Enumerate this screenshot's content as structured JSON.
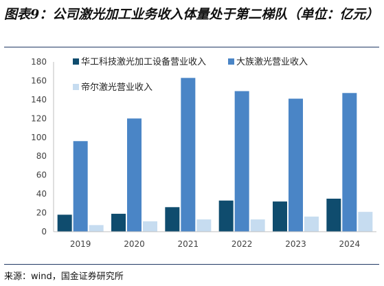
{
  "title": "图表9：公司激光加工业务收入体量处于第二梯队（单位：亿元）",
  "source": "来源：wind，国金证券研究所",
  "chart_data": {
    "type": "bar",
    "title": "图表9：公司激光加工业务收入体量处于第二梯队（单位：亿元）",
    "xlabel": "",
    "ylabel": "",
    "categories": [
      "2019",
      "2020",
      "2021",
      "2022",
      "2023",
      "2024"
    ],
    "ylim": [
      0,
      180
    ],
    "yticks": [
      0,
      20,
      40,
      60,
      80,
      100,
      120,
      140,
      160,
      180
    ],
    "grid": false,
    "legend_position": "top-left",
    "series": [
      {
        "name": "华工科技激光加工设备营业收入",
        "color": "#0f4c6e",
        "values": [
          18,
          19,
          26,
          33,
          32,
          35
        ]
      },
      {
        "name": "大族激光营业收入",
        "color": "#4a85c6",
        "values": [
          96,
          120,
          163,
          149,
          141,
          147
        ]
      },
      {
        "name": "帝尔激光营业收入",
        "color": "#c6dcf0",
        "values": [
          7,
          11,
          13,
          13,
          16,
          21
        ]
      }
    ]
  }
}
